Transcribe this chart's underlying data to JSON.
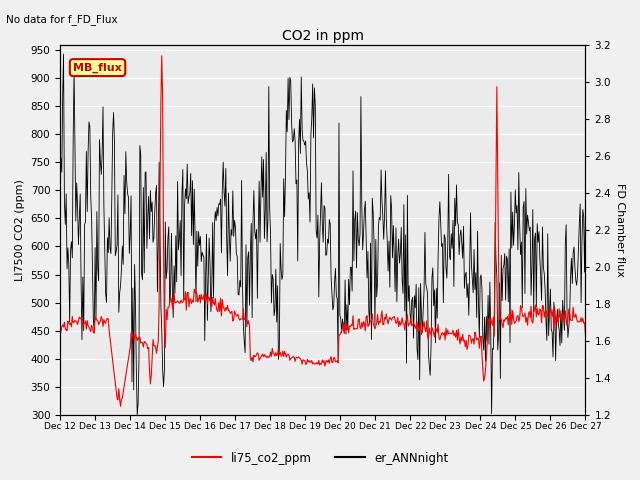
{
  "title": "CO2 in ppm",
  "ylabel_left": "LI7500 CO2 (ppm)",
  "ylabel_right": "FD Chamber flux",
  "no_data_text": "No data for f_FD_Flux",
  "legend_label1": "li75_co2_ppm",
  "legend_label2": "er_ANNnight",
  "legend_box_label": "MB_flux",
  "ylim_left": [
    300,
    960
  ],
  "ylim_right": [
    1.2,
    3.2
  ],
  "yticks_left": [
    300,
    350,
    400,
    450,
    500,
    550,
    600,
    650,
    700,
    750,
    800,
    850,
    900,
    950
  ],
  "yticks_right": [
    1.2,
    1.4,
    1.6,
    1.8,
    2.0,
    2.2,
    2.4,
    2.6,
    2.8,
    3.0,
    3.2
  ],
  "xtick_labels": [
    "Dec 12",
    "Dec 13",
    "Dec 14",
    "Dec 15",
    "Dec 16",
    "Dec 17",
    "Dec 18",
    "Dec 19",
    "Dec 20",
    "Dec 21",
    "Dec 22",
    "Dec 23",
    "Dec 24",
    "Dec 25",
    "Dec 26",
    "Dec 27"
  ],
  "bg_color": "#ebebeb",
  "line_color_red": "#ff0000",
  "line_color_black": "#000000",
  "grid_color": "#ffffff",
  "fig_bg": "#f0f0f0"
}
